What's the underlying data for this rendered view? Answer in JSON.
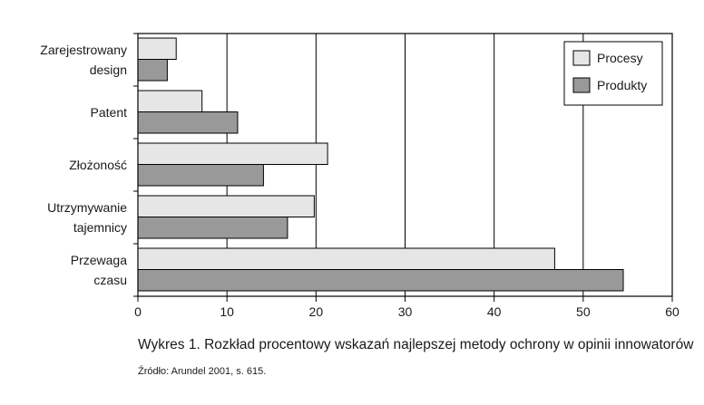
{
  "caption": "Wykres 1. Rozkład procentowy wskazań najlepszej metody ochrony w opinii innowatorów",
  "source": "Źródło: Arundel 2001, s. 615.",
  "chart_data": {
    "type": "bar",
    "orientation": "horizontal",
    "categories": [
      [
        "Zarejestrowany",
        "design"
      ],
      [
        "Patent"
      ],
      [
        "Złożoność"
      ],
      [
        "Utrzymywanie",
        "tajemnicy"
      ],
      [
        "Przewaga",
        "czasu"
      ]
    ],
    "series": [
      {
        "name": "Procesy",
        "color": "#e6e6e6",
        "values": [
          4.3,
          7.2,
          21.3,
          19.8,
          46.8
        ]
      },
      {
        "name": "Produkty",
        "color": "#999999",
        "values": [
          3.3,
          11.2,
          14.1,
          16.8,
          54.5
        ]
      }
    ],
    "xlim": [
      0,
      60
    ],
    "xticks": [
      0,
      10,
      20,
      30,
      40,
      50,
      60
    ],
    "grid": "vertical",
    "legend": "top-right",
    "title": "",
    "xlabel": "",
    "ylabel": ""
  }
}
